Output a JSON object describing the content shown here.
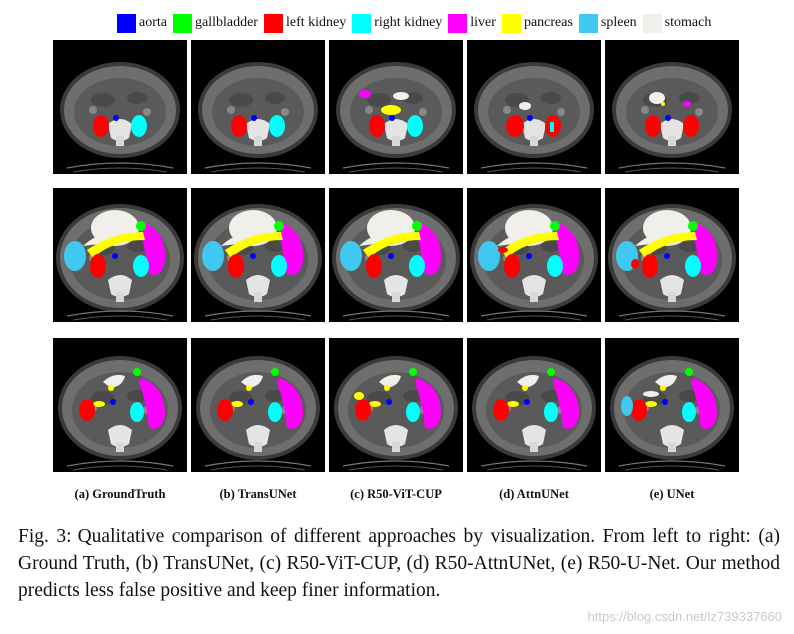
{
  "legend": [
    {
      "label": "aorta",
      "color": "#0000ff"
    },
    {
      "label": "gallbladder",
      "color": "#00ff00"
    },
    {
      "label": "left kidney",
      "color": "#ff0000"
    },
    {
      "label": "right kidney",
      "color": "#00ffff"
    },
    {
      "label": "liver",
      "color": "#ff00ff"
    },
    {
      "label": "pancreas",
      "color": "#ffff00"
    },
    {
      "label": "spleen",
      "color": "#3fc8f0"
    },
    {
      "label": "stomach",
      "color": "#f0efe9"
    }
  ],
  "columns": [
    {
      "caption": "(a) GroundTruth"
    },
    {
      "caption": "(b) TransUNet"
    },
    {
      "caption": "(c) R50-ViT-CUP"
    },
    {
      "caption": "(d) AttnUNet"
    },
    {
      "caption": "(e) UNet"
    }
  ],
  "figure_caption": {
    "label": "Fig. 3:",
    "text": "Qualitative comparison of different approaches by visualization. From left to right: (a) Ground Truth, (b) TransUNet, (c) R50-ViT-CUP, (d) R50-AttnUNet, (e) R50-U-Net. Our method predicts less false positive and keep finer information."
  },
  "watermark": "https://blog.csdn.net/lz739337660"
}
